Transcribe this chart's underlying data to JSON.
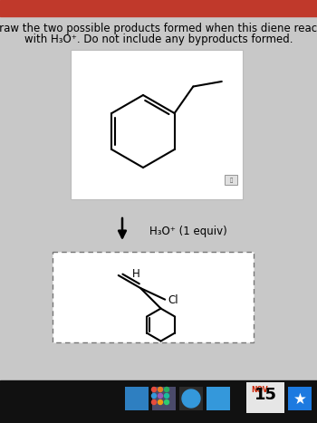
{
  "title_line1": "Draw the two possible products formed when this diene reacts",
  "title_line2": "with H₃O⁺. Do not include any byproducts formed.",
  "reagent_label": "H₃O⁺ (1 equiv)",
  "header_color": "#c0392b",
  "bg_color": "#c8c8c8",
  "white_box_bg": "#ffffff",
  "title_fontsize": 8.5,
  "reagent_fontsize": 8.5,
  "fig_width": 3.5,
  "fig_height": 4.67,
  "dpi": 100
}
